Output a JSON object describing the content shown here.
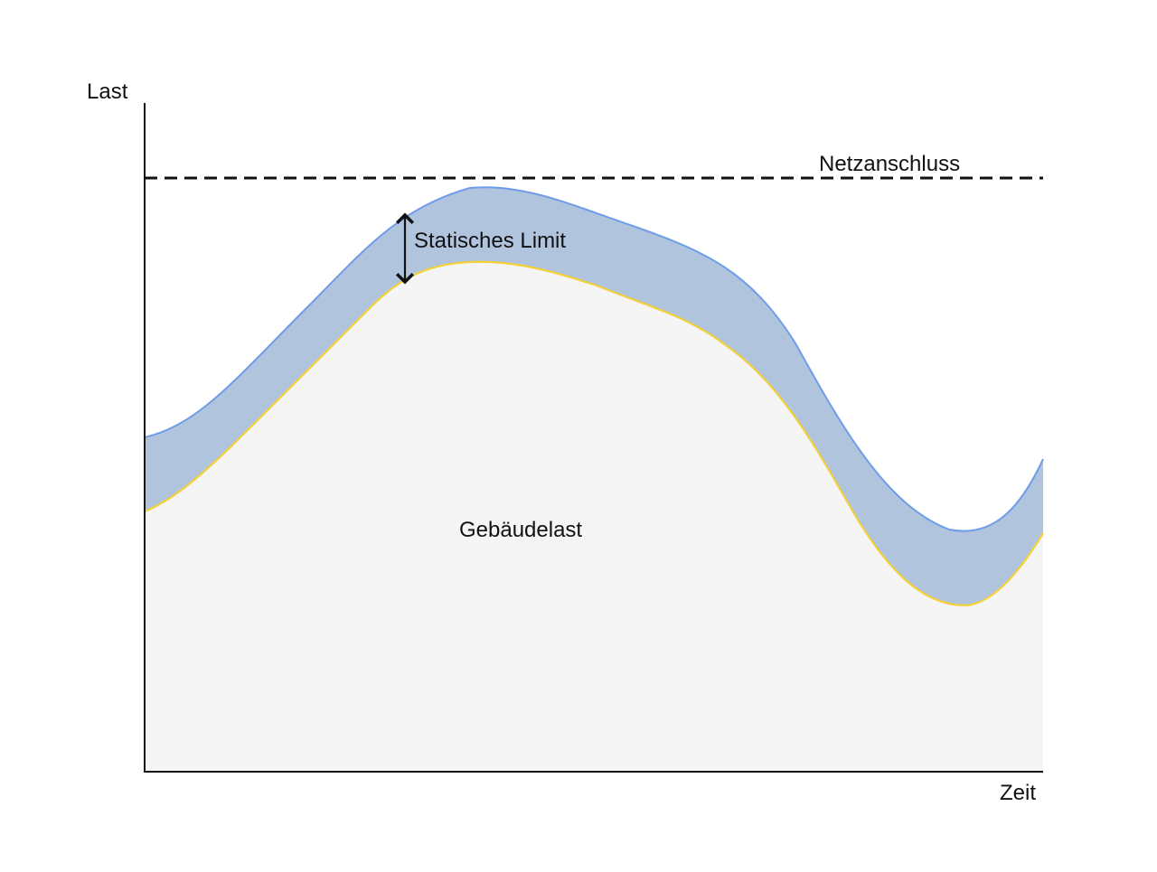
{
  "labels": {
    "y_axis": "Last",
    "x_axis": "Zeit",
    "grid_connection": "Netzanschluss",
    "static_limit": "Statisches Limit",
    "building_load": "Gebäudelast"
  },
  "colors": {
    "building_fill": "#f5f5f5",
    "building_line": "#f2d13a",
    "band_fill": "#b0c4de",
    "band_line": "#6f9ce8",
    "axis": "#111111",
    "dashed_line": "#111111"
  }
}
